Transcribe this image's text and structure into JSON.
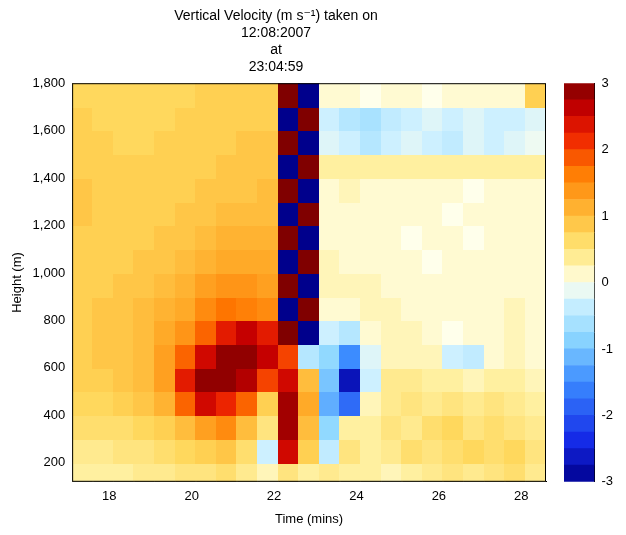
{
  "chart_data": {
    "type": "heatmap",
    "title": [
      "Vertical Velocity (m s⁻¹) taken on",
      "12:08:2007",
      "at",
      "23:04:59"
    ],
    "x_label": "Time (mins)",
    "y_label": "Height (m)",
    "xlim": [
      17.1,
      28.6
    ],
    "xticks": [
      18,
      20,
      22,
      24,
      26,
      28
    ],
    "ylim": [
      120,
      1800
    ],
    "yticks": [
      200,
      400,
      600,
      800,
      1000,
      1200,
      1400,
      1600,
      1800
    ],
    "grid": false,
    "x": [
      17.35,
      17.85,
      18.35,
      18.85,
      19.35,
      19.85,
      20.35,
      20.85,
      21.35,
      21.85,
      22.35,
      22.85,
      23.35,
      23.85,
      24.35,
      24.85,
      25.35,
      25.85,
      26.35,
      26.85,
      27.35,
      27.85,
      28.35
    ],
    "y": [
      150,
      250,
      350,
      450,
      550,
      650,
      750,
      850,
      950,
      1050,
      1150,
      1250,
      1350,
      1450,
      1550,
      1650,
      1750
    ],
    "values": [
      [
        0.3,
        0.3,
        0.3,
        0.4,
        0.4,
        0.5,
        0.5,
        0.6,
        0.4,
        0.2,
        0.5,
        0.3,
        0.4,
        0.3,
        0.3,
        0.2,
        0.3,
        0.4,
        0.5,
        0.4,
        0.5,
        0.6,
        0.4
      ],
      [
        0.4,
        0.4,
        0.5,
        0.5,
        0.6,
        0.7,
        0.8,
        0.9,
        0.6,
        -0.3,
        2.5,
        0.8,
        -0.4,
        0.5,
        0.3,
        0.4,
        0.6,
        0.5,
        0.6,
        0.7,
        0.6,
        0.7,
        0.5
      ],
      [
        0.6,
        0.6,
        0.6,
        0.7,
        0.8,
        1.0,
        1.3,
        1.5,
        1.0,
        0.5,
        2.8,
        1.0,
        -0.8,
        0.3,
        0.3,
        0.5,
        0.4,
        0.6,
        0.7,
        0.5,
        0.6,
        0.5,
        0.4
      ],
      [
        0.7,
        0.7,
        0.8,
        0.9,
        1.1,
        1.8,
        2.5,
        2.2,
        1.8,
        0.8,
        2.8,
        1.2,
        -1.2,
        -1.8,
        0.2,
        0.4,
        0.5,
        0.4,
        0.5,
        0.4,
        0.5,
        0.4,
        0.3
      ],
      [
        0.8,
        0.8,
        0.9,
        1.0,
        1.3,
        2.3,
        2.9,
        2.9,
        2.7,
        2.0,
        2.5,
        1.0,
        -1.0,
        -2.7,
        -0.3,
        0.4,
        0.4,
        0.3,
        0.3,
        0.2,
        0.3,
        0.3,
        0.2
      ],
      [
        0.8,
        0.9,
        0.9,
        1.0,
        1.3,
        1.8,
        2.5,
        2.9,
        2.9,
        2.6,
        2.0,
        -0.5,
        -0.8,
        -1.5,
        -0.2,
        0.2,
        0.2,
        0.2,
        -0.3,
        -0.4,
        0.1,
        0.2,
        0.1
      ],
      [
        0.8,
        0.9,
        0.9,
        1.0,
        1.2,
        1.4,
        1.8,
        2.3,
        2.6,
        2.3,
        3,
        -3,
        -0.3,
        -0.5,
        0.1,
        0.2,
        0.2,
        0.1,
        0.0,
        0.1,
        0.1,
        0.2,
        0.1
      ],
      [
        0.8,
        0.9,
        0.9,
        1.0,
        1.1,
        1.2,
        1.5,
        1.7,
        1.6,
        1.5,
        -3,
        3,
        0.1,
        0.1,
        0.2,
        0.2,
        0.1,
        0.1,
        0.1,
        0.1,
        0.1,
        0.2,
        0.1
      ],
      [
        0.8,
        0.8,
        0.9,
        0.9,
        1.0,
        1.1,
        1.3,
        1.4,
        1.4,
        1.3,
        3,
        -3,
        0.2,
        0.2,
        0.2,
        0.1,
        0.1,
        0.1,
        0.1,
        0.1,
        0.1,
        0.1,
        0.1
      ],
      [
        0.8,
        0.8,
        0.8,
        0.9,
        0.9,
        1.0,
        1.1,
        1.2,
        1.2,
        1.2,
        -3,
        3,
        0.2,
        0.1,
        0.1,
        0.1,
        0.1,
        0.0,
        0.1,
        0.1,
        0.1,
        0.1,
        0.1
      ],
      [
        0.8,
        0.8,
        0.8,
        0.8,
        0.9,
        0.9,
        1.0,
        1.1,
        1.1,
        1.1,
        3,
        -3,
        0.1,
        0.1,
        0.1,
        0.1,
        0.0,
        0.1,
        0.1,
        0.0,
        0.1,
        0.1,
        0.1
      ],
      [
        0.9,
        0.8,
        0.8,
        0.8,
        0.8,
        0.9,
        0.9,
        1.0,
        1.0,
        1.0,
        -3,
        3,
        0.1,
        0.1,
        0.1,
        0.1,
        0.1,
        0.1,
        0.0,
        0.1,
        0.1,
        0.1,
        0.1
      ],
      [
        0.9,
        0.8,
        0.8,
        0.8,
        0.8,
        0.8,
        0.9,
        0.9,
        0.9,
        1.0,
        3,
        -3,
        0.1,
        0.2,
        0.1,
        0.1,
        0.1,
        0.1,
        0.1,
        0.0,
        0.1,
        0.1,
        0.1
      ],
      [
        0.8,
        0.8,
        0.8,
        0.8,
        0.8,
        0.8,
        0.8,
        0.9,
        0.9,
        0.9,
        -3,
        3,
        0.3,
        0.3,
        0.3,
        0.3,
        0.3,
        0.3,
        0.3,
        0.3,
        0.3,
        0.3,
        0.3
      ],
      [
        0.8,
        0.8,
        0.7,
        0.7,
        0.8,
        0.8,
        0.8,
        0.8,
        0.9,
        0.9,
        3,
        -3,
        -0.2,
        -0.3,
        -0.5,
        -0.3,
        -0.2,
        -0.3,
        -0.4,
        -0.2,
        -0.3,
        -0.2,
        -0.1
      ],
      [
        0.8,
        0.7,
        0.7,
        0.7,
        0.7,
        0.8,
        0.8,
        0.8,
        0.8,
        0.8,
        -3,
        3,
        -0.3,
        -0.5,
        -0.6,
        -0.4,
        -0.3,
        -0.2,
        -0.3,
        -0.2,
        -0.3,
        -0.3,
        -0.2
      ],
      [
        0.7,
        0.7,
        0.7,
        0.7,
        0.7,
        0.7,
        0.8,
        0.8,
        0.8,
        0.8,
        3,
        -3,
        0.1,
        0.1,
        0.0,
        0.1,
        0.1,
        0.0,
        0.1,
        0.1,
        0.1,
        0.1,
        0.8
      ]
    ],
    "colorbar": {
      "range": [
        -3,
        3
      ],
      "ticks": [
        -3,
        -2,
        -1,
        0,
        1,
        2,
        3
      ]
    }
  }
}
